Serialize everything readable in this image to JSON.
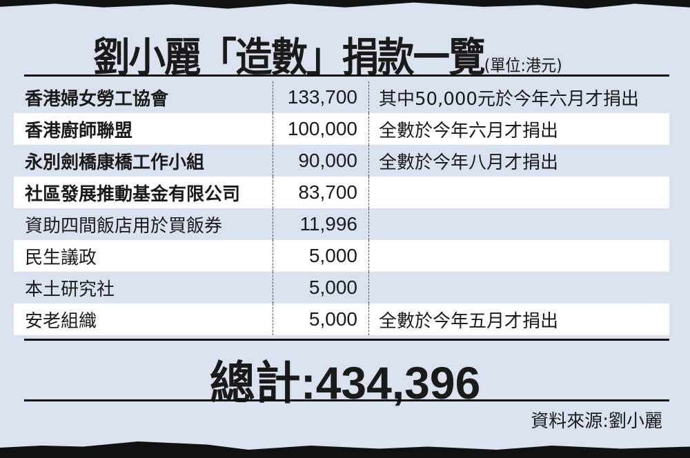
{
  "title": "劉小麗「造數」捐款一覽",
  "unit": "(單位:港元)",
  "rows": [
    {
      "org": "香港婦女勞工協會",
      "amount": "133,700",
      "note": "其中50,000元於今年六月才捐出",
      "bold": true
    },
    {
      "org": "香港廚師聯盟",
      "amount": "100,000",
      "note": "全數於今年六月才捐出",
      "bold": true
    },
    {
      "org": "永別劍橋康橋工作小組",
      "amount": "90,000",
      "note": "全數於今年八月才捐出",
      "bold": true
    },
    {
      "org": "社區發展推動基金有限公司",
      "amount": "83,700",
      "note": "",
      "bold": true
    },
    {
      "org": "資助四間飯店用於買飯券",
      "amount": "11,996",
      "note": "",
      "bold": false
    },
    {
      "org": "民生議政",
      "amount": "5,000",
      "note": "",
      "bold": false
    },
    {
      "org": "本土研究社",
      "amount": "5,000",
      "note": "",
      "bold": false
    },
    {
      "org": "安老組織",
      "amount": "5,000",
      "note": "全數於今年五月才捐出",
      "bold": false
    }
  ],
  "total": "總計:434,396",
  "source": "資料來源:劉小麗",
  "colors": {
    "background": "#d9e2ee",
    "alt_row": "#ffffff",
    "text": "#1a1a1a"
  }
}
